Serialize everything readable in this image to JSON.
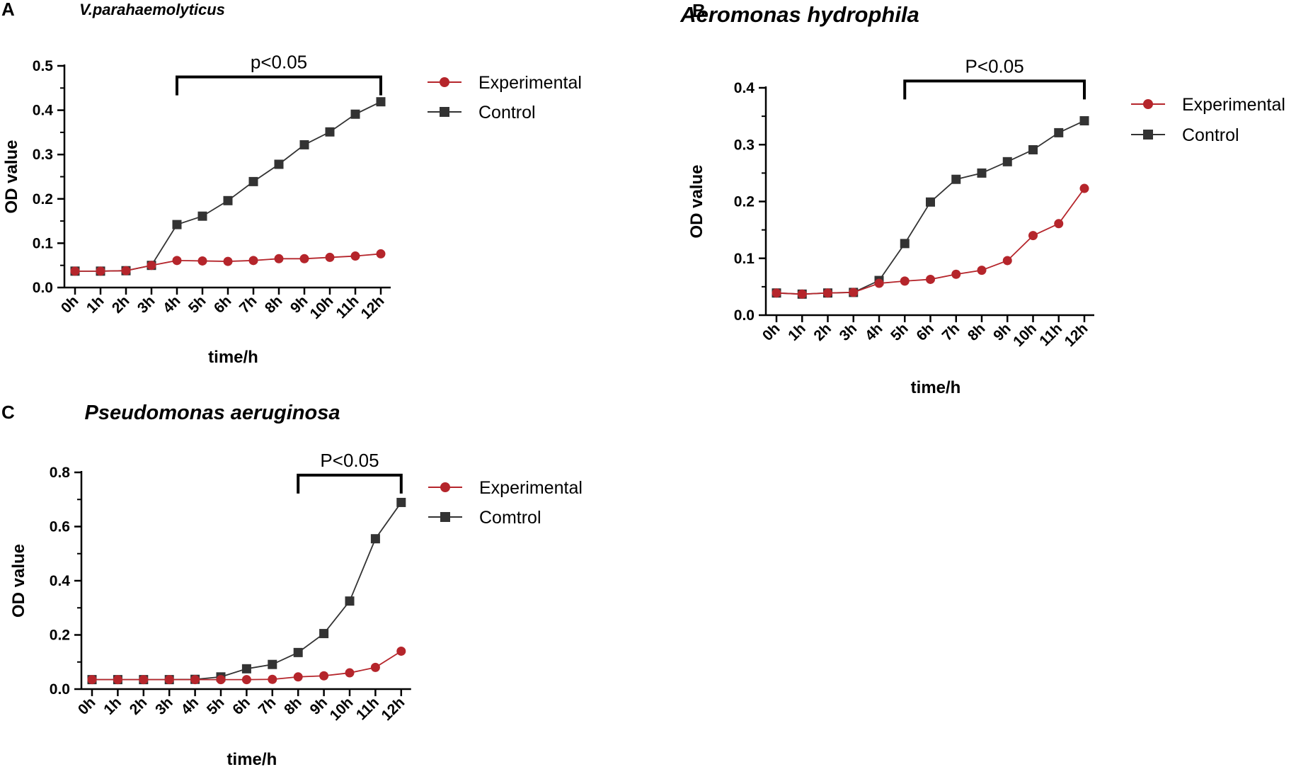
{
  "colors": {
    "experimental": "#b5252b",
    "control": "#333333",
    "axis": "#000000"
  },
  "chart_data": [
    {
      "type": "line",
      "panel": "A",
      "title": "V.parahaemolyticus",
      "xlabel": "time/h",
      "ylabel": "OD value",
      "categories": [
        "0h",
        "1h",
        "2h",
        "3h",
        "4h",
        "5h",
        "6h",
        "7h",
        "8h",
        "9h",
        "10h",
        "11h",
        "12h"
      ],
      "ylim": [
        0,
        0.5
      ],
      "yticks": [
        0.0,
        0.1,
        0.2,
        0.3,
        0.4,
        0.5
      ],
      "ytick_labels": [
        "0.0",
        "0.1",
        "0.2",
        "0.3",
        "0.4",
        "0.5"
      ],
      "series": [
        {
          "name": "Experimental",
          "marker": "circle",
          "values": [
            0.037,
            0.037,
            0.038,
            0.05,
            0.061,
            0.06,
            0.059,
            0.061,
            0.065,
            0.065,
            0.068,
            0.071,
            0.076
          ]
        },
        {
          "name": "Control",
          "marker": "square",
          "values": [
            0.037,
            0.037,
            0.038,
            0.05,
            0.142,
            0.161,
            0.196,
            0.239,
            0.278,
            0.322,
            0.351,
            0.391,
            0.419
          ]
        }
      ],
      "significance": {
        "label": "p<0.05",
        "from": "4h",
        "to": "12h",
        "level": 0.475
      },
      "legend_position": "right"
    },
    {
      "type": "line",
      "panel": "B",
      "title": "Aeromonas hydrophila",
      "xlabel": "time/h",
      "ylabel": "OD value",
      "categories": [
        "0h",
        "1h",
        "2h",
        "3h",
        "4h",
        "5h",
        "6h",
        "7h",
        "8h",
        "9h",
        "10h",
        "11h",
        "12h"
      ],
      "ylim": [
        0,
        0.4
      ],
      "yticks": [
        0.0,
        0.1,
        0.2,
        0.3,
        0.4
      ],
      "ytick_labels": [
        "0.0",
        "0.1",
        "0.2",
        "0.3",
        "0.4"
      ],
      "series": [
        {
          "name": "Experimental",
          "marker": "circle",
          "values": [
            0.039,
            0.037,
            0.039,
            0.04,
            0.056,
            0.06,
            0.063,
            0.072,
            0.079,
            0.096,
            0.14,
            0.161,
            0.223
          ]
        },
        {
          "name": "Control",
          "marker": "square",
          "values": [
            0.039,
            0.037,
            0.039,
            0.04,
            0.061,
            0.126,
            0.199,
            0.239,
            0.25,
            0.27,
            0.291,
            0.321,
            0.342
          ]
        }
      ],
      "significance": {
        "label": "P<0.05",
        "from": "5h",
        "to": "12h",
        "level": 0.412
      },
      "legend_position": "right"
    },
    {
      "type": "line",
      "panel": "C",
      "title": "Pseudomonas aeruginosa",
      "xlabel": "time/h",
      "ylabel": "OD value",
      "categories": [
        "0h",
        "1h",
        "2h",
        "3h",
        "4h",
        "5h",
        "6h",
        "7h",
        "8h",
        "9h",
        "10h",
        "11h",
        "12h"
      ],
      "ylim": [
        0,
        0.8
      ],
      "yticks": [
        0.0,
        0.2,
        0.4,
        0.6,
        0.8
      ],
      "ytick_labels": [
        "0.0",
        "0.2",
        "0.4",
        "0.6",
        "0.8"
      ],
      "series": [
        {
          "name": "Experimental",
          "marker": "circle",
          "values": [
            0.035,
            0.035,
            0.035,
            0.035,
            0.035,
            0.035,
            0.035,
            0.036,
            0.045,
            0.049,
            0.06,
            0.08,
            0.14
          ]
        },
        {
          "name": "Comtrol",
          "marker": "square",
          "values": [
            0.035,
            0.035,
            0.035,
            0.035,
            0.036,
            0.045,
            0.075,
            0.091,
            0.135,
            0.205,
            0.325,
            0.555,
            0.689
          ]
        }
      ],
      "significance": {
        "label": "P<0.05",
        "from": "8h",
        "to": "12h",
        "level": 0.79
      },
      "legend_position": "right"
    }
  ]
}
